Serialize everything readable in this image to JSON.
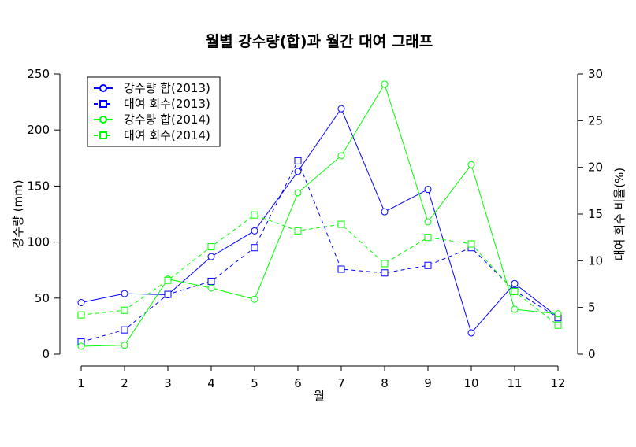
{
  "chart_data": {
    "type": "line",
    "title": "월별 강수량(합)과 월간 대여 그래프",
    "xlabel": "월",
    "ylabel": "강수량 (mm)",
    "y2label": "대여 회수 비율(%)",
    "x": [
      1,
      2,
      3,
      4,
      5,
      6,
      7,
      8,
      9,
      10,
      11,
      12
    ],
    "x_ticks": [
      "1",
      "2",
      "3",
      "4",
      "5",
      "6",
      "7",
      "8",
      "9",
      "10",
      "11",
      "12"
    ],
    "ylim": [
      0,
      250
    ],
    "y_ticks": [
      "0",
      "50",
      "100",
      "150",
      "200",
      "250"
    ],
    "y2lim": [
      0,
      30
    ],
    "y2_ticks": [
      "0",
      "5",
      "10",
      "15",
      "20",
      "25",
      "30"
    ],
    "legend_position": "top-left",
    "grid": false,
    "series": [
      {
        "name": "강수량 합(2013)",
        "axis": "left",
        "color": "#0000ff",
        "line_style": "solid",
        "marker": "circle",
        "values": [
          46,
          54,
          53,
          87,
          110,
          163,
          219,
          127,
          147,
          19,
          63,
          33
        ]
      },
      {
        "name": "대여 회수(2013)",
        "axis": "right",
        "color": "#0000ff",
        "line_style": "dashed",
        "marker": "square",
        "values": [
          1.3,
          2.6,
          6.4,
          7.8,
          11.4,
          20.7,
          9.1,
          8.7,
          9.5,
          11.4,
          6.8,
          3.9
        ]
      },
      {
        "name": "강수량 합(2014)",
        "axis": "left",
        "color": "#00ff00",
        "line_style": "solid",
        "marker": "circle",
        "values": [
          7,
          8,
          67,
          59,
          49,
          144,
          177,
          241,
          118,
          169,
          40,
          36
        ]
      },
      {
        "name": "대여 회수(2014)",
        "axis": "right",
        "color": "#00ff00",
        "line_style": "dashed",
        "marker": "square",
        "values": [
          4.2,
          4.7,
          7.9,
          11.5,
          14.9,
          13.2,
          13.9,
          9.7,
          12.5,
          11.8,
          6.7,
          3.1
        ]
      }
    ]
  }
}
